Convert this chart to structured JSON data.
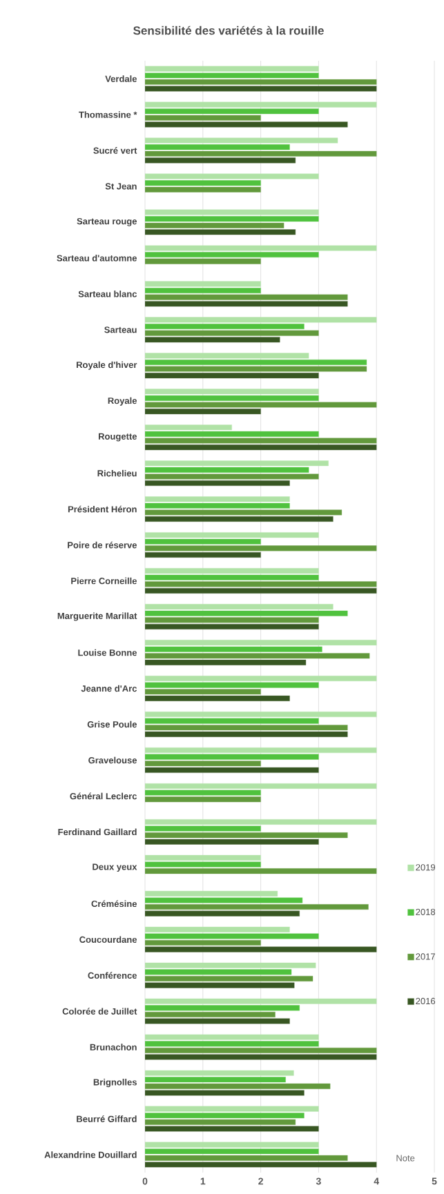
{
  "chart_data": {
    "type": "bar",
    "orientation": "horizontal",
    "title": "Sensibilité des variétés à la rouille",
    "xlabel": "Note",
    "categories": [
      "Verdale",
      "Thomassine *",
      "Sucré vert",
      "St Jean",
      "Sarteau rouge",
      "Sarteau d'automne",
      "Sarteau blanc",
      "Sarteau",
      "Royale d'hiver",
      "Royale",
      "Rougette",
      "Richelieu",
      "Président  Héron",
      "Poire de réserve",
      "Pierre  Corneille",
      "Marguerite Marillat",
      "Louise Bonne",
      "Jeanne d'Arc",
      "Grise Poule",
      "Gravelouse",
      "Général Leclerc",
      "Ferdinand Gaillard",
      "Deux yeux",
      "Crémésine",
      "Coucourdane",
      "Conférence",
      "Colorée de Juillet",
      "Brunachon",
      "Brignolles",
      "Beurré Giffard",
      "Alexandrine Douillard"
    ],
    "series": [
      {
        "name": "2019",
        "color": "#b0e2a6",
        "values": [
          3,
          4,
          3.33,
          3,
          3,
          4,
          2,
          4,
          2.83,
          3,
          1.5,
          3.17,
          2.5,
          3,
          3,
          3.25,
          4,
          4,
          4,
          4,
          4,
          4,
          2,
          2.29,
          2.5,
          2.95,
          4,
          3,
          2.57,
          3,
          3
        ]
      },
      {
        "name": "2018",
        "color": "#50c23e",
        "values": [
          3,
          3,
          2.5,
          2,
          3,
          3,
          2,
          2.75,
          3.83,
          3,
          3,
          2.83,
          2.5,
          2,
          3,
          3.5,
          3.06,
          3,
          3,
          3,
          2,
          2,
          2,
          2.72,
          3,
          2.53,
          2.67,
          3,
          2.43,
          2.75,
          3
        ]
      },
      {
        "name": "2017",
        "color": "#62993c",
        "values": [
          4,
          2,
          4,
          2,
          2.4,
          2,
          3.5,
          3,
          3.83,
          4,
          4,
          3,
          3.4,
          4,
          4,
          3,
          3.88,
          2,
          3.5,
          2,
          2,
          3.5,
          4,
          3.86,
          2,
          2.9,
          2.25,
          4,
          3.2,
          2.6,
          3.5
        ]
      },
      {
        "name": "2016",
        "color": "#385723",
        "values": [
          4,
          3.5,
          2.6,
          null,
          2.6,
          null,
          3.5,
          2.33,
          3,
          2,
          4,
          2.5,
          3.25,
          2,
          4,
          3,
          2.78,
          2.5,
          3.5,
          3,
          null,
          3,
          null,
          2.67,
          4,
          2.58,
          2.5,
          4,
          2.75,
          3,
          4
        ]
      }
    ],
    "xlim": [
      0,
      5
    ],
    "xticks": [
      0,
      1,
      2,
      3,
      4,
      5
    ],
    "grid": "x",
    "legend": "right"
  }
}
